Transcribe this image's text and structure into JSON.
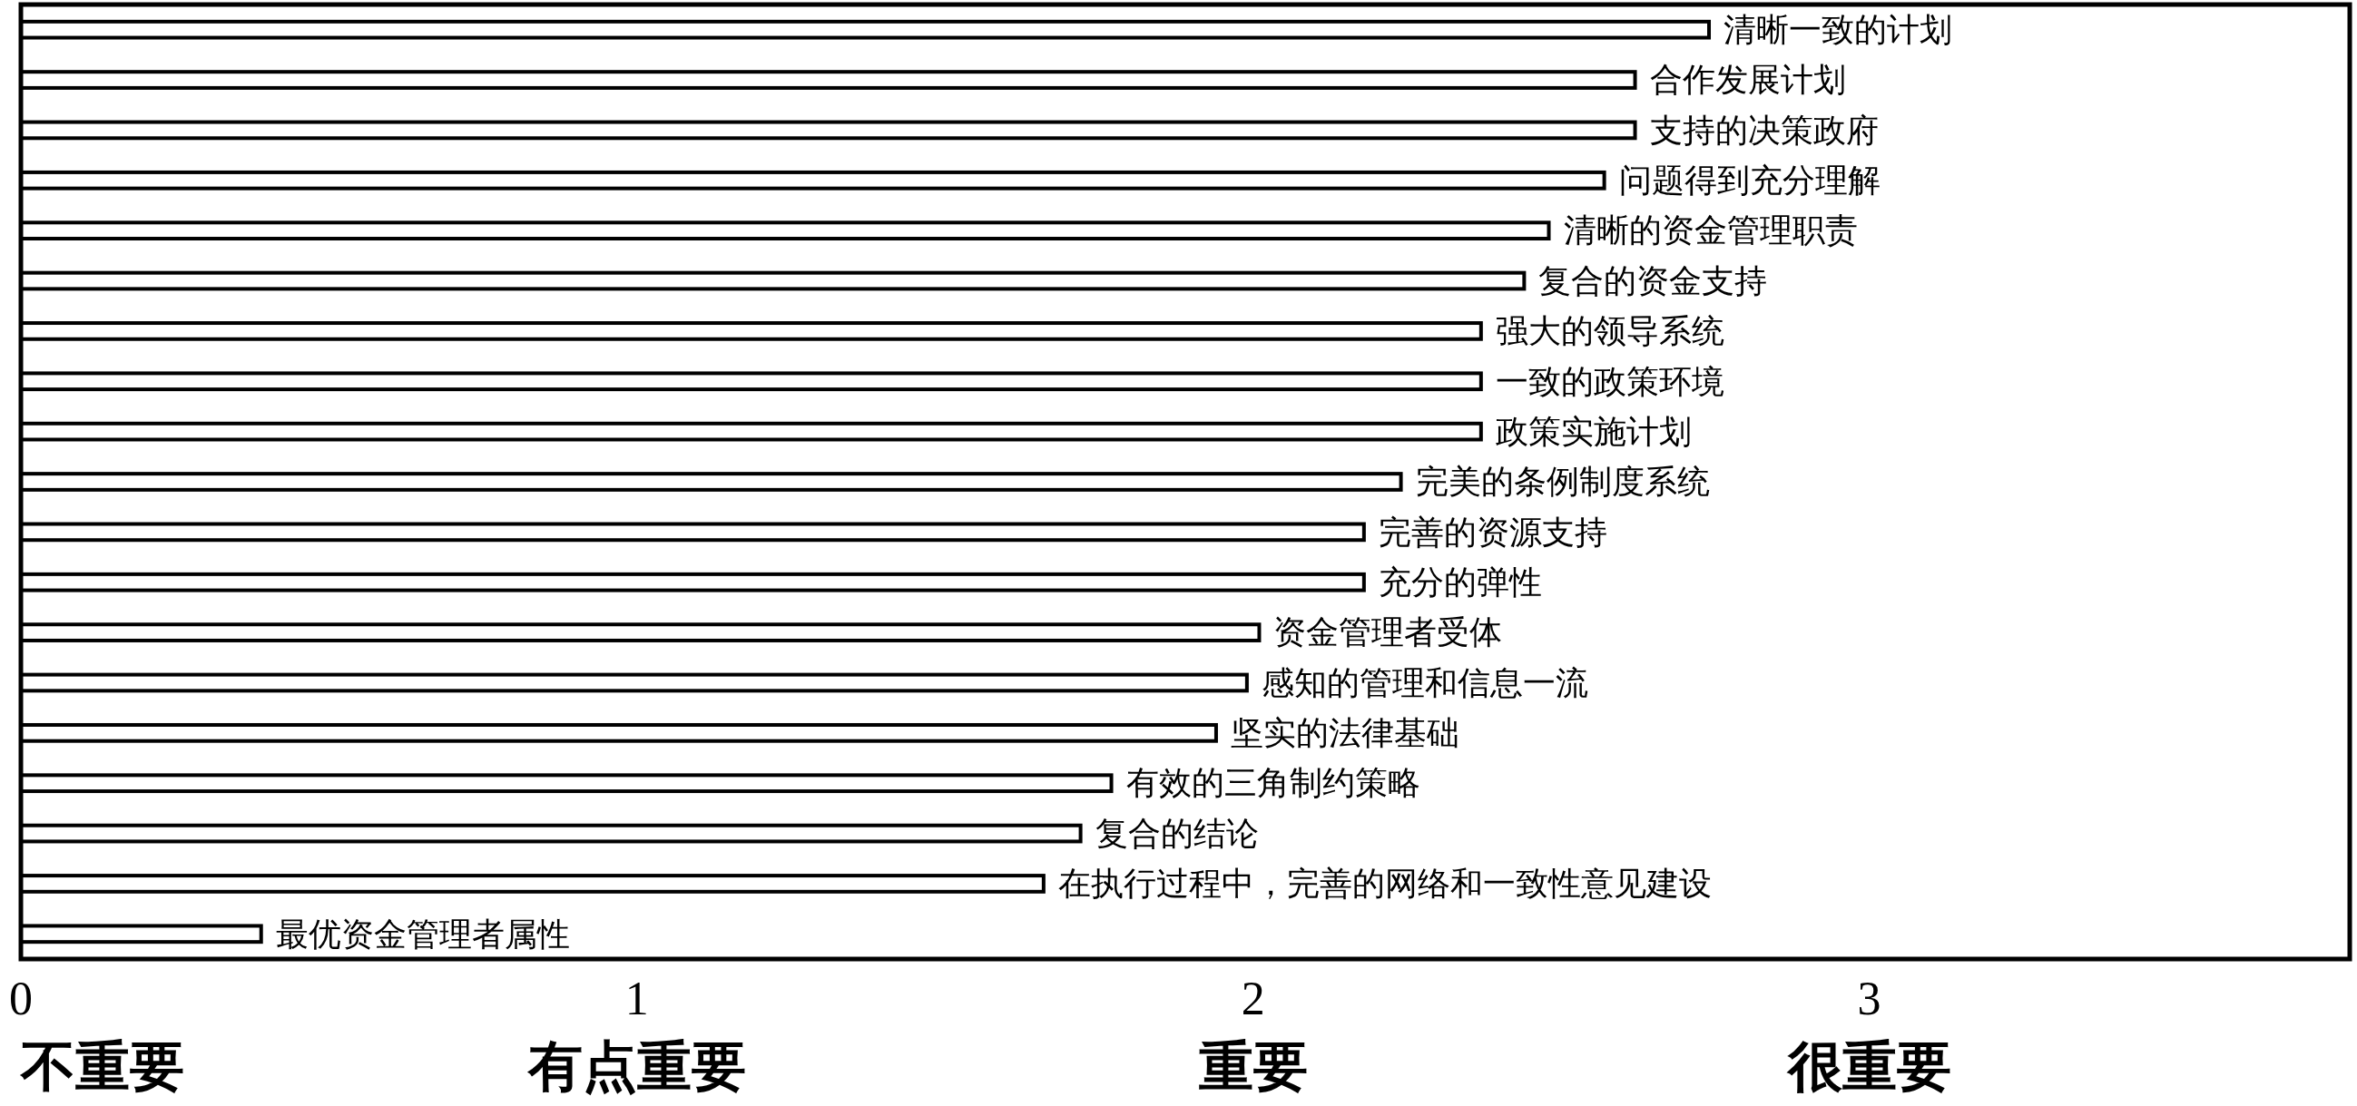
{
  "chart_data": {
    "type": "bar",
    "orientation": "horizontal",
    "categories": [
      "清晰一致的计划",
      "合作发展计划",
      "支持的决策政府",
      "问题得到充分理解",
      "清晰的资金管理职责",
      "复合的资金支持",
      "强大的领导系统",
      "一致的政策环境",
      "政策实施计划",
      "完美的条例制度系统",
      "完善的资源支持",
      "充分的弹性",
      "资金管理者受体",
      "感知的管理和信息一流",
      "坚实的法律基础",
      "有效的三角制约策略",
      "复合的结论",
      "在执行过程中，完善的网络和一致性意见建设",
      "最优资金管理者属性"
    ],
    "values": [
      2.74,
      2.62,
      2.62,
      2.57,
      2.48,
      2.44,
      2.37,
      2.37,
      2.37,
      2.24,
      2.18,
      2.18,
      2.01,
      1.99,
      1.94,
      1.77,
      1.72,
      1.66,
      0.39
    ],
    "color": "#ffffff",
    "xlim": [
      0,
      3.78
    ],
    "xticks": [
      {
        "value": 0,
        "label": "0\n不重要"
      },
      {
        "value": 1,
        "label": "1\n有点重要"
      },
      {
        "value": 2,
        "label": "2\n重要"
      },
      {
        "value": 3,
        "label": "3\n很重要"
      }
    ],
    "grid": false
  }
}
